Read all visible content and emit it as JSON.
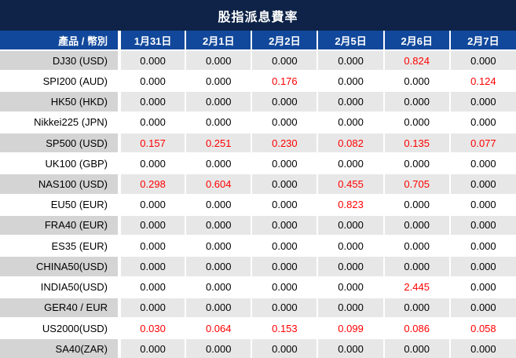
{
  "colors": {
    "title_bar_bg": "#0e2347",
    "header_bg": "#11489b",
    "header_text": "#ffffff",
    "stripe_product_bg": "#d4d4d4",
    "stripe_cell_bg": "#e7e7e7",
    "zero_value_color": "#000000",
    "nonzero_value_color": "#ff0000",
    "cell_border": "#ffffff"
  },
  "chart_data": {
    "type": "table",
    "title": "股指派息費率",
    "product_header": "產品 / 幣別",
    "columns": [
      "1月31日",
      "2月1日",
      "2月2日",
      "2月5日",
      "2月6日",
      "2月7日"
    ],
    "rows": [
      {
        "product": "DJ30 (USD)",
        "values": [
          "0.000",
          "0.000",
          "0.000",
          "0.000",
          "0.824",
          "0.000"
        ]
      },
      {
        "product": "SPI200 (AUD)",
        "values": [
          "0.000",
          "0.000",
          "0.176",
          "0.000",
          "0.000",
          "0.124"
        ]
      },
      {
        "product": "HK50 (HKD)",
        "values": [
          "0.000",
          "0.000",
          "0.000",
          "0.000",
          "0.000",
          "0.000"
        ]
      },
      {
        "product": "Nikkei225 (JPN)",
        "values": [
          "0.000",
          "0.000",
          "0.000",
          "0.000",
          "0.000",
          "0.000"
        ]
      },
      {
        "product": "SP500 (USD)",
        "values": [
          "0.157",
          "0.251",
          "0.230",
          "0.082",
          "0.135",
          "0.077"
        ]
      },
      {
        "product": "UK100 (GBP)",
        "values": [
          "0.000",
          "0.000",
          "0.000",
          "0.000",
          "0.000",
          "0.000"
        ]
      },
      {
        "product": "NAS100 (USD)",
        "values": [
          "0.298",
          "0.604",
          "0.000",
          "0.455",
          "0.705",
          "0.000"
        ]
      },
      {
        "product": "EU50 (EUR)",
        "values": [
          "0.000",
          "0.000",
          "0.000",
          "0.823",
          "0.000",
          "0.000"
        ]
      },
      {
        "product": "FRA40 (EUR)",
        "values": [
          "0.000",
          "0.000",
          "0.000",
          "0.000",
          "0.000",
          "0.000"
        ]
      },
      {
        "product": "ES35 (EUR)",
        "values": [
          "0.000",
          "0.000",
          "0.000",
          "0.000",
          "0.000",
          "0.000"
        ]
      },
      {
        "product": "CHINA50(USD)",
        "values": [
          "0.000",
          "0.000",
          "0.000",
          "0.000",
          "0.000",
          "0.000"
        ]
      },
      {
        "product": "INDIA50(USD)",
        "values": [
          "0.000",
          "0.000",
          "0.000",
          "0.000",
          "2.445",
          "0.000"
        ]
      },
      {
        "product": "GER40 / EUR",
        "values": [
          "0.000",
          "0.000",
          "0.000",
          "0.000",
          "0.000",
          "0.000"
        ]
      },
      {
        "product": "US2000(USD)",
        "values": [
          "0.030",
          "0.064",
          "0.153",
          "0.099",
          "0.086",
          "0.058"
        ]
      },
      {
        "product": "SA40(ZAR)",
        "values": [
          "0.000",
          "0.000",
          "0.000",
          "0.000",
          "0.000",
          "0.000"
        ]
      }
    ]
  }
}
